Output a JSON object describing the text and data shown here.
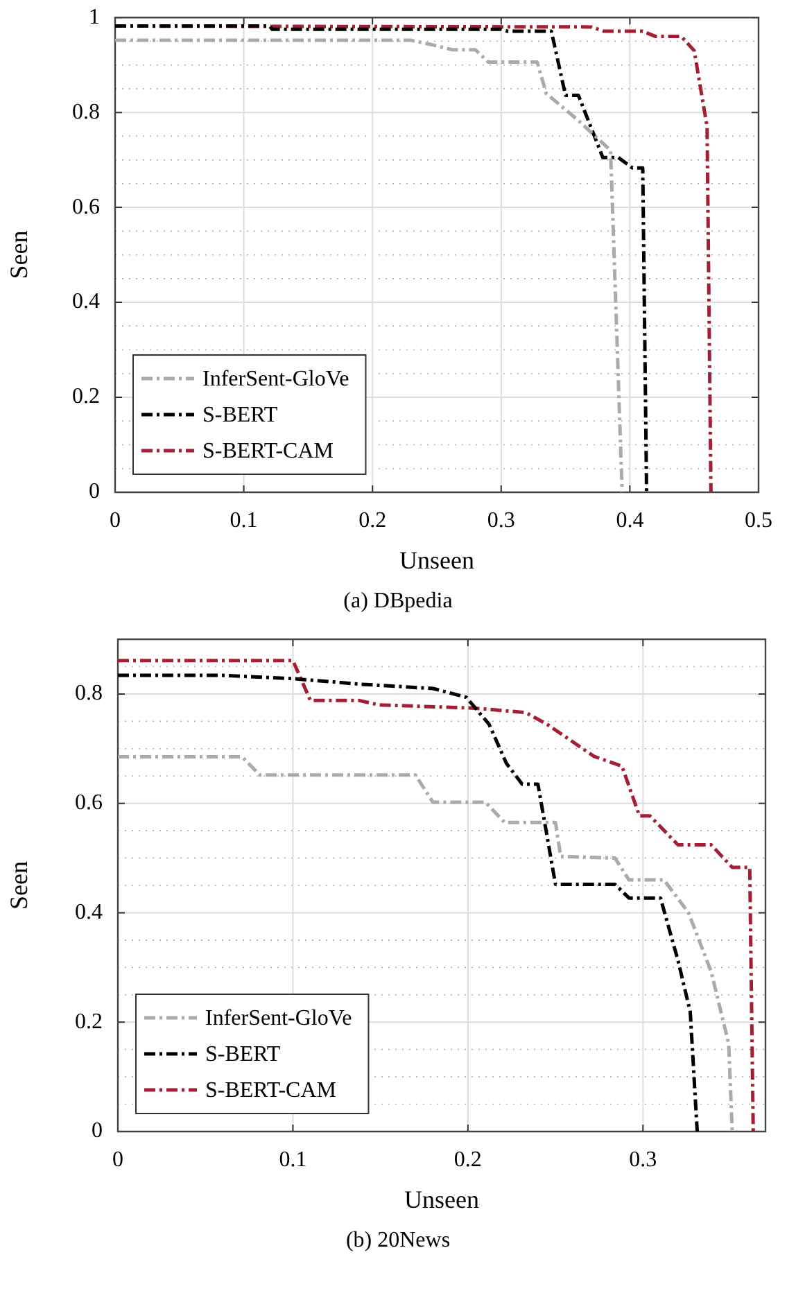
{
  "chart_data": [
    {
      "type": "line",
      "title": "(a)  DBpedia",
      "xlabel": "Unseen",
      "ylabel": "Seen",
      "xlim": [
        0,
        0.5
      ],
      "ylim": [
        0,
        1
      ],
      "xticks": [
        0,
        0.1,
        0.2,
        0.3,
        0.4,
        0.5
      ],
      "yticks": [
        0,
        {
          "value": 0.05,
          "label": null
        },
        {
          "value": 0.1,
          "label": null
        },
        {
          "value": 0.15,
          "label": null
        },
        0.2,
        {
          "value": 0.25,
          "label": null
        },
        {
          "value": 0.3,
          "label": null
        },
        {
          "value": 0.35,
          "label": null
        },
        0.4,
        {
          "value": 0.45,
          "label": null
        },
        {
          "value": 0.5,
          "label": null
        },
        {
          "value": 0.55,
          "label": null
        },
        0.6,
        {
          "value": 0.65,
          "label": null
        },
        {
          "value": 0.7,
          "label": null
        },
        {
          "value": 0.75,
          "label": null
        },
        0.8,
        {
          "value": 0.85,
          "label": null
        },
        {
          "value": 0.9,
          "label": null
        },
        {
          "value": 0.95,
          "label": null
        },
        1
      ],
      "grid": true,
      "legend": "bottom left",
      "line_style": "dashdot",
      "series": [
        {
          "name": "InferSent-GloVe",
          "color": "#aaaaaa",
          "x": [
            0,
            0.23,
            0.247,
            0.262,
            0.28,
            0.29,
            0.328,
            0.335,
            0.36,
            0.385,
            0.394
          ],
          "values": [
            0.952,
            0.952,
            0.942,
            0.932,
            0.932,
            0.906,
            0.906,
            0.84,
            0.783,
            0.72,
            0
          ]
        },
        {
          "name": "S-BERT",
          "color": "#000000",
          "x": [
            0,
            0.12,
            0.122,
            0.3,
            0.305,
            0.339,
            0.35,
            0.36,
            0.379,
            0.391,
            0.402,
            0.41,
            0.413
          ],
          "values": [
            0.982,
            0.982,
            0.975,
            0.975,
            0.971,
            0.971,
            0.836,
            0.836,
            0.705,
            0.705,
            0.683,
            0.683,
            0
          ]
        },
        {
          "name": "S-BERT-CAM",
          "color": "#a31f34",
          "x": [
            0,
            0.37,
            0.38,
            0.41,
            0.42,
            0.44,
            0.45,
            0.46,
            0.463
          ],
          "values": [
            0.982,
            0.98,
            0.971,
            0.971,
            0.96,
            0.96,
            0.93,
            0.77,
            0
          ]
        }
      ]
    },
    {
      "type": "line",
      "title": "(b)  20News",
      "xlabel": "Unseen",
      "ylabel": "Seen",
      "xlim": [
        0,
        0.37
      ],
      "ylim": [
        0,
        0.9
      ],
      "xticks": [
        0,
        0.1,
        0.2,
        0.3
      ],
      "yticks": [
        0,
        {
          "value": 0.05,
          "label": null
        },
        {
          "value": 0.1,
          "label": null
        },
        {
          "value": 0.15,
          "label": null
        },
        0.2,
        {
          "value": 0.25,
          "label": null
        },
        {
          "value": 0.3,
          "label": null
        },
        {
          "value": 0.35,
          "label": null
        },
        0.4,
        {
          "value": 0.45,
          "label": null
        },
        {
          "value": 0.5,
          "label": null
        },
        {
          "value": 0.55,
          "label": null
        },
        0.6,
        {
          "value": 0.65,
          "label": null
        },
        {
          "value": 0.7,
          "label": null
        },
        {
          "value": 0.75,
          "label": null
        },
        0.8,
        {
          "value": 0.85,
          "label": null
        }
      ],
      "grid": true,
      "legend": "bottom left",
      "line_style": "dashdot",
      "series": [
        {
          "name": "InferSent-GloVe",
          "color": "#aaaaaa",
          "x": [
            0,
            0.071,
            0.081,
            0.17,
            0.18,
            0.21,
            0.221,
            0.25,
            0.253,
            0.284,
            0.292,
            0.312,
            0.326,
            0.339,
            0.349,
            0.351
          ],
          "values": [
            0.685,
            0.685,
            0.652,
            0.652,
            0.602,
            0.602,
            0.565,
            0.565,
            0.503,
            0.5,
            0.46,
            0.46,
            0.4,
            0.292,
            0.16,
            0
          ]
        },
        {
          "name": "S-BERT",
          "color": "#000000",
          "x": [
            0,
            0.06,
            0.1,
            0.138,
            0.18,
            0.199,
            0.212,
            0.222,
            0.231,
            0.24,
            0.25,
            0.284,
            0.292,
            0.31,
            0.32,
            0.327,
            0.331
          ],
          "values": [
            0.834,
            0.834,
            0.828,
            0.818,
            0.81,
            0.794,
            0.745,
            0.673,
            0.635,
            0.635,
            0.452,
            0.452,
            0.427,
            0.427,
            0.313,
            0.219,
            0
          ]
        },
        {
          "name": "S-BERT-CAM",
          "color": "#a31f34",
          "x": [
            0,
            0.1,
            0.11,
            0.138,
            0.149,
            0.204,
            0.233,
            0.245,
            0.272,
            0.288,
            0.298,
            0.304,
            0.32,
            0.339,
            0.351,
            0.361,
            0.363
          ],
          "values": [
            0.861,
            0.861,
            0.788,
            0.788,
            0.78,
            0.774,
            0.766,
            0.745,
            0.686,
            0.668,
            0.577,
            0.577,
            0.524,
            0.524,
            0.483,
            0.483,
            0
          ]
        }
      ]
    }
  ]
}
